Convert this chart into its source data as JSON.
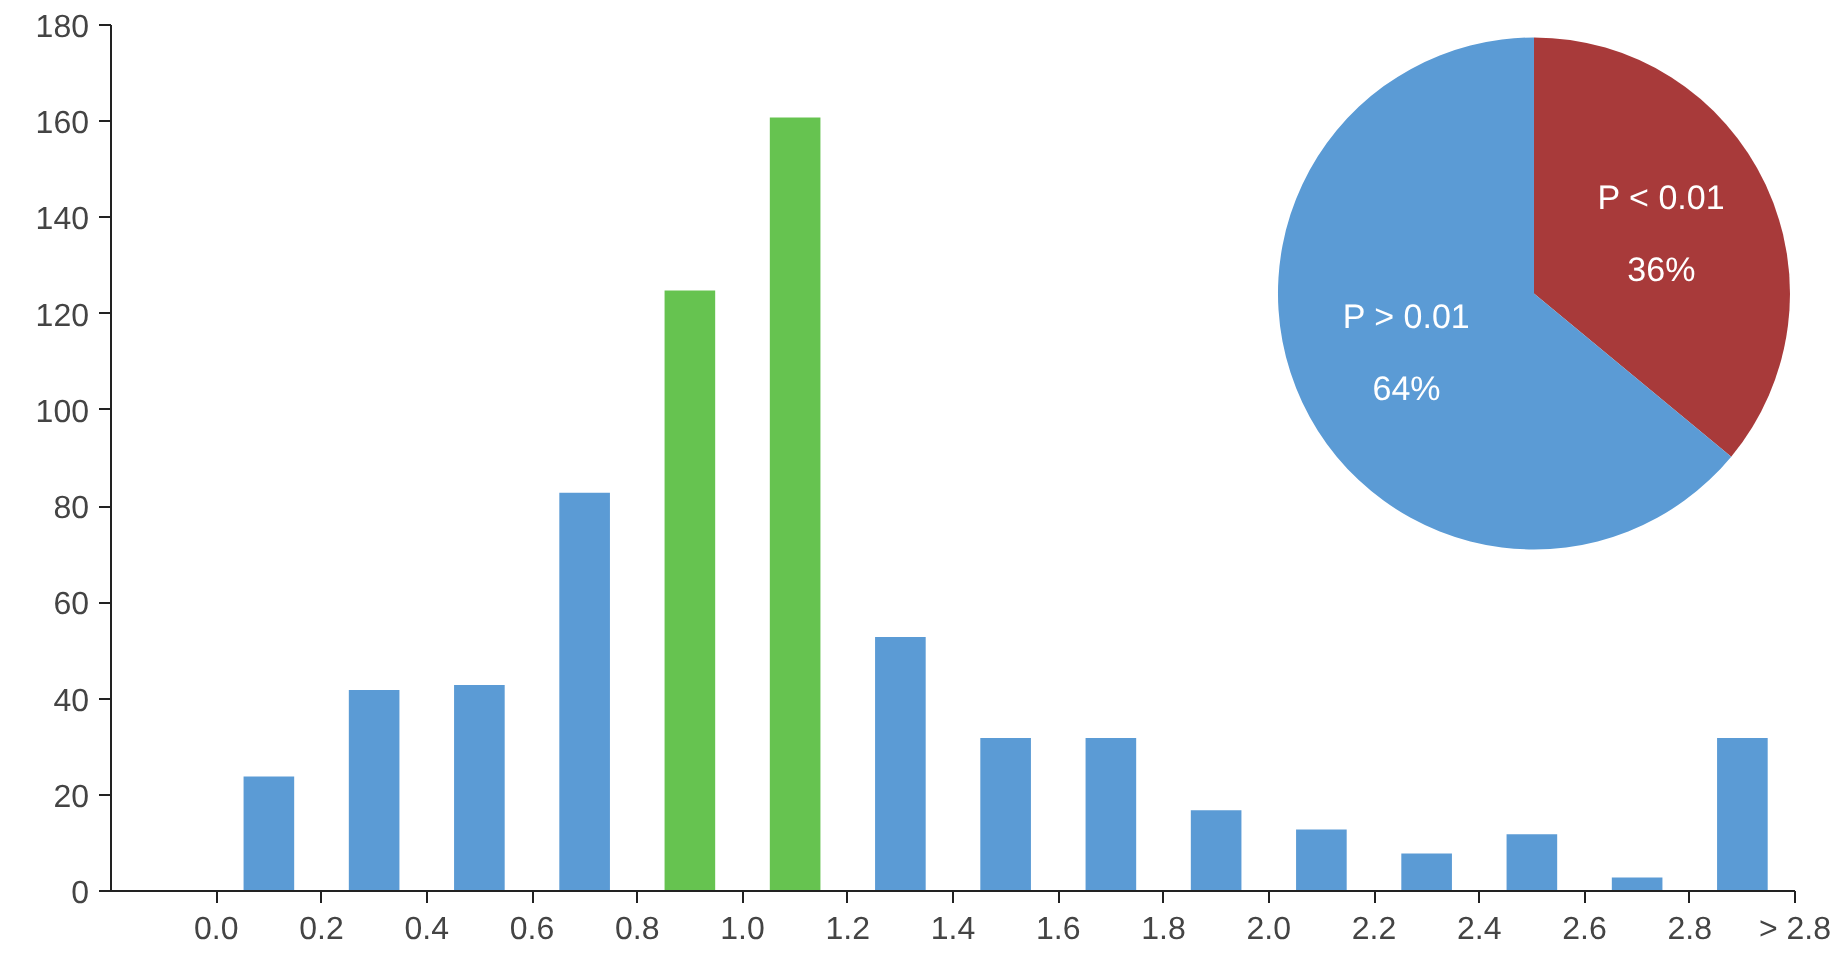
{
  "chart_data": [
    {
      "type": "histogram",
      "bins": [
        0.0,
        0.2,
        0.4,
        0.6,
        0.8,
        1.0,
        1.2,
        1.4,
        1.6,
        1.8,
        2.0,
        2.2,
        2.4,
        2.6,
        2.8,
        3.0
      ],
      "values": [
        24,
        42,
        43,
        83,
        125,
        161,
        53,
        32,
        32,
        17,
        13,
        8,
        12,
        3,
        32
      ],
      "colors": [
        "#5b9bd5",
        "#5b9bd5",
        "#5b9bd5",
        "#5b9bd5",
        "#66c350",
        "#66c350",
        "#5b9bd5",
        "#5b9bd5",
        "#5b9bd5",
        "#5b9bd5",
        "#5b9bd5",
        "#5b9bd5",
        "#5b9bd5",
        "#5b9bd5",
        "#5b9bd5"
      ],
      "xlim": [
        -0.2,
        3.0
      ],
      "xticks": [
        {
          "value": 0,
          "label": "0.0"
        },
        0.2,
        0.4,
        0.6,
        0.8,
        {
          "value": 1,
          "label": "1.0"
        },
        1.2,
        1.4,
        1.6,
        1.8,
        {
          "value": 2,
          "label": "2.0"
        },
        2.2,
        2.4,
        2.6,
        2.8,
        {
          "value": 3.0,
          "label": "> 2.8"
        }
      ],
      "ylim": [
        0,
        180
      ],
      "yticks": [
        0,
        20,
        40,
        60,
        80,
        100,
        120,
        140,
        160,
        180
      ],
      "grid": false
    },
    {
      "type": "pie",
      "categories": [
        "P < 0.01",
        "P > 0.01"
      ],
      "values": [
        36,
        64
      ],
      "colors": [
        "#a83a3a",
        "#5b9bd5"
      ],
      "value_labels": [
        "36%",
        "64%"
      ]
    }
  ]
}
